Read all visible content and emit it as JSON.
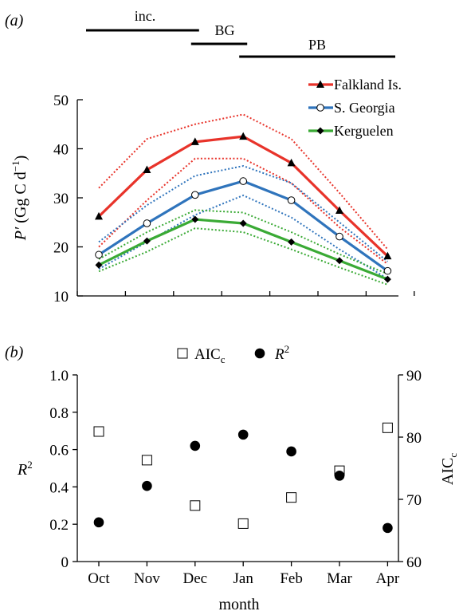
{
  "panel_a": {
    "label": "(a)",
    "phases": [
      {
        "label": "inc.",
        "start": "Oct",
        "end": "Dec"
      },
      {
        "label": "BG",
        "start": "Dec",
        "end": "Jan"
      },
      {
        "label": "PB",
        "start": "Jan",
        "end": "Apr"
      }
    ]
  },
  "panel_b": {
    "label": "(b)"
  },
  "chart_data": [
    {
      "type": "line",
      "categories": [
        "Oct",
        "Nov",
        "Dec",
        "Jan",
        "Feb",
        "Mar",
        "Apr"
      ],
      "ylabel": "P′ (Gg C d⁻¹)",
      "ylim": [
        10,
        50
      ],
      "yticks": [
        10,
        20,
        30,
        40,
        50
      ],
      "legend_position": "top-right",
      "series": [
        {
          "name": "Falkland Is.",
          "color": "#e8332a",
          "marker": "triangle",
          "values": [
            26.2,
            35.7,
            41.4,
            42.5,
            37.1,
            27.4,
            18.1
          ],
          "upper": [
            32.0,
            42.0,
            45.0,
            47.0,
            42.0,
            31.0,
            19.5
          ],
          "lower": [
            20.0,
            29.5,
            38.0,
            38.0,
            33.0,
            24.0,
            16.5
          ]
        },
        {
          "name": "S. Georgia",
          "color": "#2f74bc",
          "marker": "circle-open",
          "values": [
            18.4,
            24.8,
            30.6,
            33.4,
            29.5,
            22.1,
            15.1
          ],
          "upper": [
            21.0,
            28.5,
            34.5,
            36.5,
            33.0,
            25.0,
            17.0
          ],
          "lower": [
            15.5,
            21.0,
            26.5,
            30.5,
            26.0,
            19.5,
            13.5
          ]
        },
        {
          "name": "Kerguelen",
          "color": "#3aaa35",
          "marker": "diamond",
          "values": [
            16.3,
            21.2,
            25.6,
            24.8,
            21.0,
            17.2,
            13.4
          ],
          "upper": [
            17.5,
            23.0,
            27.5,
            27.0,
            23.0,
            18.5,
            14.5
          ],
          "lower": [
            15.0,
            19.0,
            23.8,
            23.0,
            19.5,
            15.8,
            12.3
          ]
        }
      ]
    },
    {
      "type": "scatter",
      "categories": [
        "Oct",
        "Nov",
        "Dec",
        "Jan",
        "Feb",
        "Mar",
        "Apr"
      ],
      "xlabel": "month",
      "ylabel_left": "R²",
      "ylabel_right": "AICc",
      "ylim_left": [
        0,
        1.0
      ],
      "yticks_left": [
        "0",
        "0.2",
        "0.4",
        "0.6",
        "0.8",
        "1.0"
      ],
      "ylim_right": [
        60,
        90
      ],
      "yticks_right": [
        "60",
        "70",
        "80",
        "90"
      ],
      "legend_position": "top-center",
      "series": [
        {
          "name": "AICc",
          "axis": "right",
          "marker": "square-open",
          "values": [
            80.9,
            76.3,
            69.0,
            66.1,
            70.3,
            74.6,
            81.5
          ]
        },
        {
          "name": "R²",
          "axis": "left",
          "marker": "circle-filled",
          "values": [
            0.21,
            0.405,
            0.62,
            0.68,
            0.59,
            0.46,
            0.18
          ]
        }
      ]
    }
  ]
}
